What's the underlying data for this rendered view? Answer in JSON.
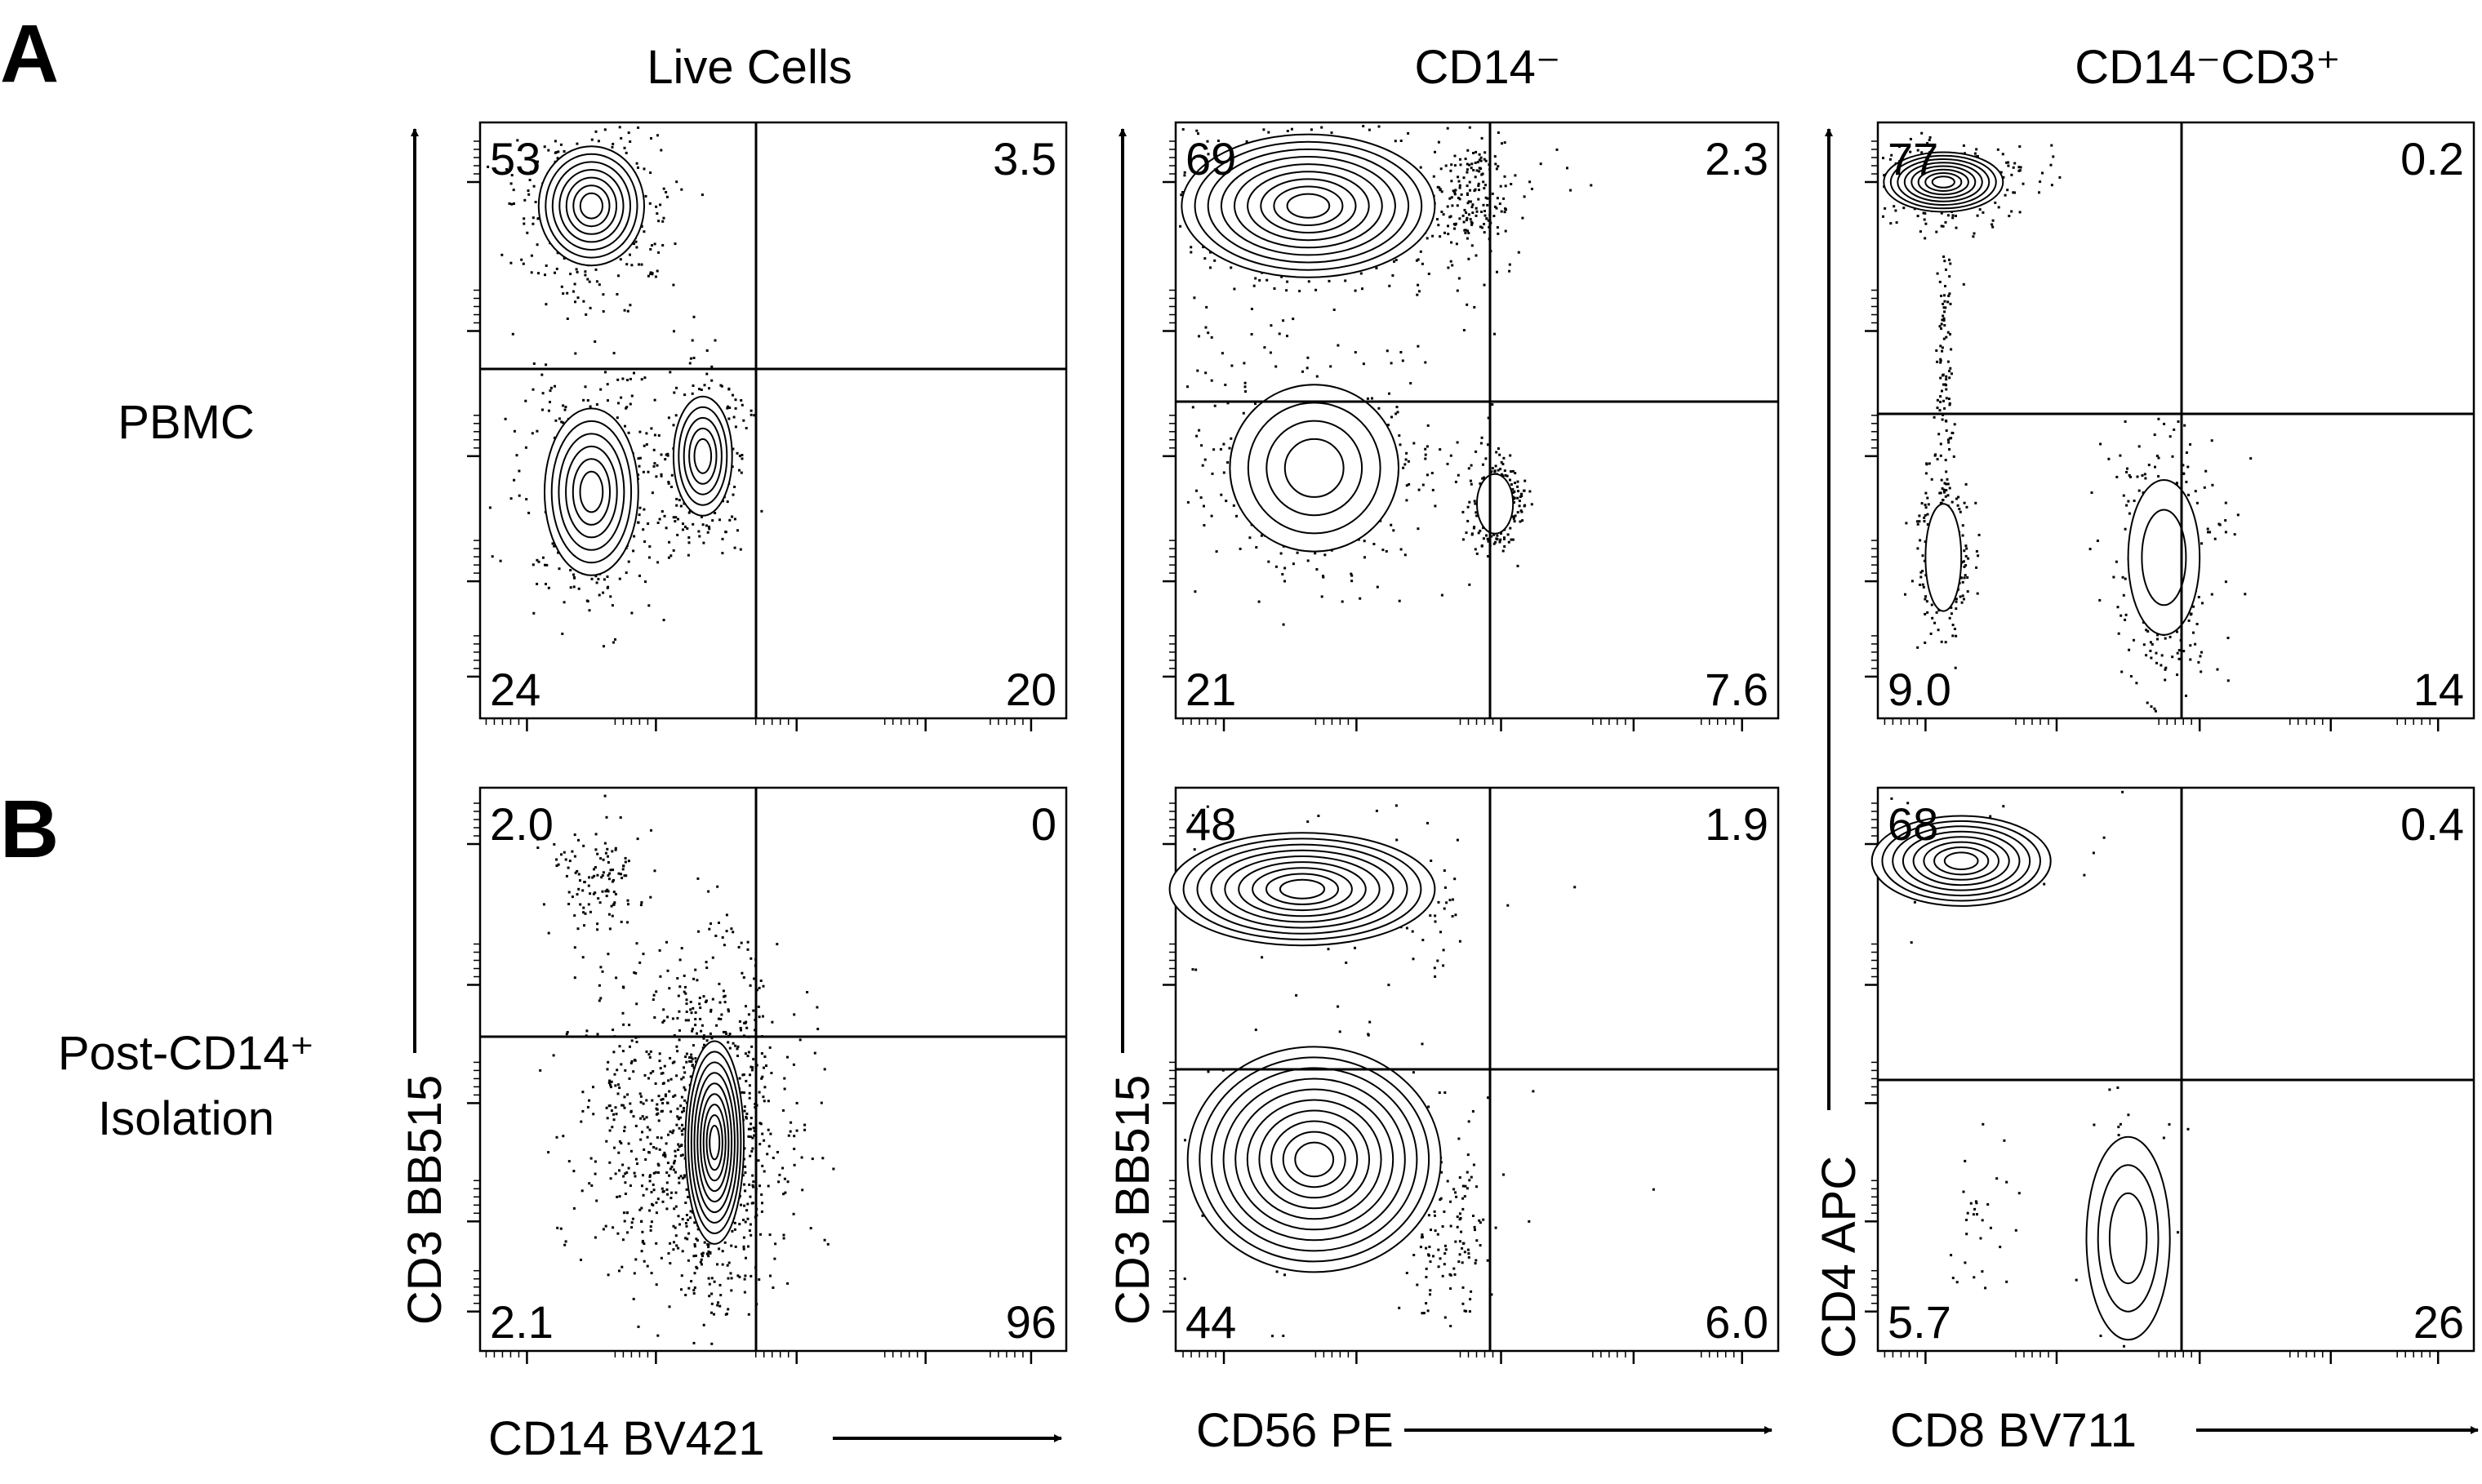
{
  "panel_letters": [
    "A",
    "B"
  ],
  "column_titles": {
    "live": "Live Cells",
    "cd14neg": "CD14⁻",
    "cd14neg_cd3pos": "CD14⁻CD3⁺"
  },
  "row_labels": {
    "pbmc": "PBMC",
    "post_line1": "Post-CD14⁺",
    "post_line2": "Isolation"
  },
  "axis_labels": {
    "cd3_bb515": "CD3 BB515",
    "cd4_apc": "CD4 APC",
    "cd14_bv421": "CD14 BV421",
    "cd56_pe": "CD56 PE",
    "cd8_bv711": "CD8 BV711"
  },
  "colors": {
    "ink": "#000000",
    "background": "#ffffff"
  },
  "chart_data": [
    {
      "type": "scatter",
      "panel": "A",
      "title": "Live Cells",
      "row_label": "PBMC",
      "xlabel": "CD14 BV421",
      "ylabel": "CD3 BB515",
      "quadrants": {
        "top_left": "53",
        "top_right": "3.5",
        "bottom_left": "24",
        "bottom_right": "20"
      }
    },
    {
      "type": "scatter",
      "panel": "A",
      "title": "CD14⁻",
      "row_label": "PBMC",
      "xlabel": "CD56 PE",
      "ylabel": "CD3 BB515",
      "quadrants": {
        "top_left": "69",
        "top_right": "2.3",
        "bottom_left": "21",
        "bottom_right": "7.6"
      }
    },
    {
      "type": "scatter",
      "panel": "A",
      "title": "CD14⁻CD3⁺",
      "row_label": "PBMC",
      "xlabel": "CD8 BV711",
      "ylabel": "CD4 APC",
      "quadrants": {
        "top_left": "77",
        "top_right": "0.2",
        "bottom_left": "9.0",
        "bottom_right": "14"
      }
    },
    {
      "type": "scatter",
      "panel": "B",
      "title": "Live Cells",
      "row_label": "Post-CD14⁺ Isolation",
      "xlabel": "CD14 BV421",
      "ylabel": "CD3 BB515",
      "quadrants": {
        "top_left": "2.0",
        "top_right": "0",
        "bottom_left": "2.1",
        "bottom_right": "96"
      }
    },
    {
      "type": "scatter",
      "panel": "B",
      "title": "CD14⁻",
      "row_label": "Post-CD14⁺ Isolation",
      "xlabel": "CD56 PE",
      "ylabel": "CD3 BB515",
      "quadrants": {
        "top_left": "48",
        "top_right": "1.9",
        "bottom_left": "44",
        "bottom_right": "6.0"
      }
    },
    {
      "type": "scatter",
      "panel": "B",
      "title": "CD14⁻CD3⁺",
      "row_label": "Post-CD14⁺ Isolation",
      "xlabel": "CD8 BV711",
      "ylabel": "CD4 APC",
      "quadrants": {
        "top_left": "68",
        "top_right": "0.4",
        "bottom_left": "5.7",
        "bottom_right": "26"
      }
    }
  ]
}
